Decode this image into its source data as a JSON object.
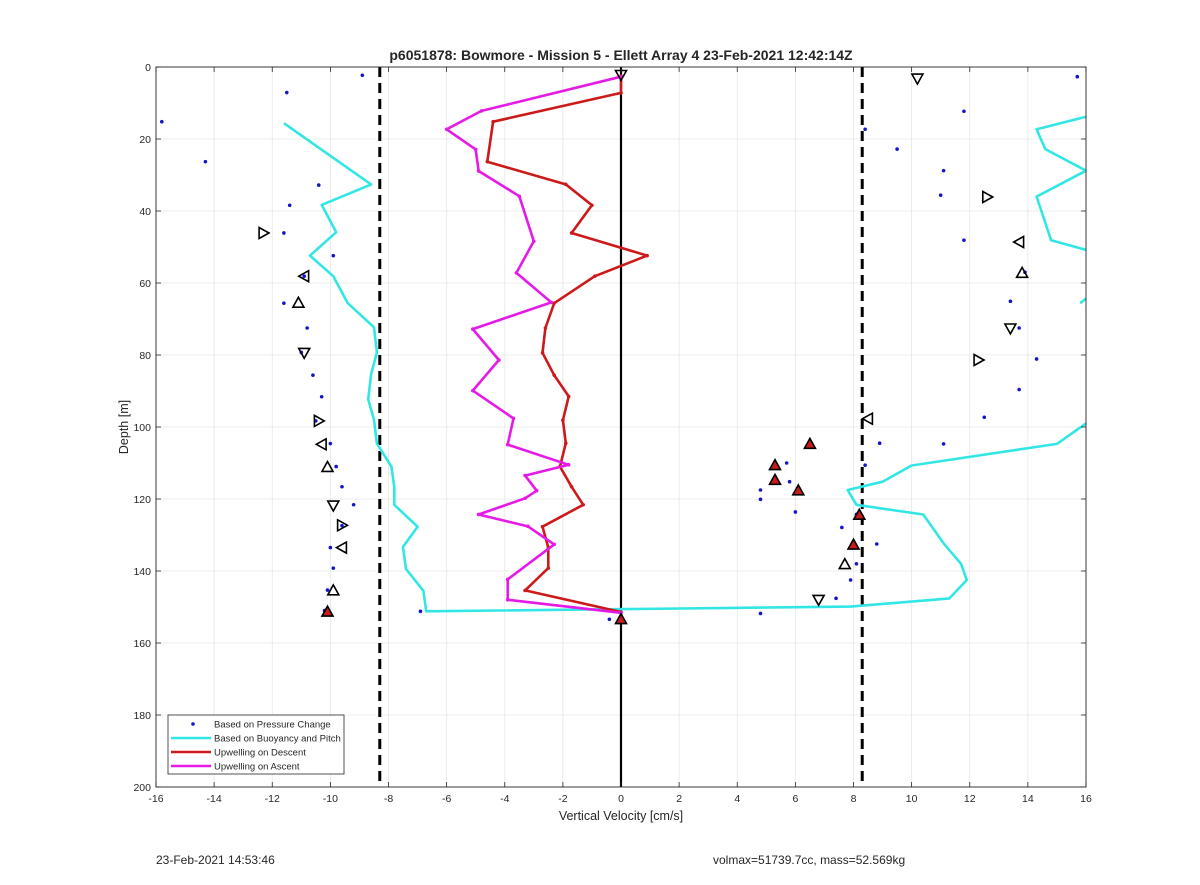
{
  "chart_data": {
    "type": "scatter",
    "title": "p6051878: Bowmore - Mission 5 - Ellett Array 4 23-Feb-2021 12:42:14Z",
    "xlabel": "Vertical Velocity [cm/s]",
    "ylabel": "Depth [m]",
    "xlim": [
      -16,
      16
    ],
    "ylim": [
      0,
      200
    ],
    "y_reversed": true,
    "grid": true,
    "legend_position": "bottom-left",
    "xticks": [
      "-16",
      "-14",
      "-12",
      "-10",
      "-8",
      "-6",
      "-4",
      "-2",
      "0",
      "2",
      "4",
      "6",
      "8",
      "10",
      "12",
      "14",
      "16"
    ],
    "yticks": [
      "0",
      "20",
      "40",
      "60",
      "80",
      "100",
      "120",
      "140",
      "160",
      "180",
      "200"
    ],
    "reference_lines": {
      "dashed_x": [
        -8.3,
        8.3
      ],
      "solid_x": [
        0
      ]
    },
    "colors": {
      "pressure": "#1414c8",
      "buoyancy": "#33e6e6",
      "descent": "#cc1a1a",
      "ascent": "#e61ae6",
      "axis": "#262626",
      "grid": "#e6e6e6"
    },
    "series": [
      {
        "name": "Based on Pressure Change",
        "style": "dots",
        "points": [
          [
            -8.9,
            2.3
          ],
          [
            -11.5,
            7.1
          ],
          [
            -15.8,
            15.2
          ],
          [
            -14.3,
            26.3
          ],
          [
            -10.4,
            32.8
          ],
          [
            -11.4,
            38.4
          ],
          [
            -11.6,
            46.1
          ],
          [
            -9.9,
            52.4
          ],
          [
            -10.9,
            58.1
          ],
          [
            -11.6,
            65.6
          ],
          [
            -10.8,
            72.5
          ],
          [
            -11.0,
            79.3
          ],
          [
            -10.6,
            85.6
          ],
          [
            -10.3,
            91.6
          ],
          [
            -10.5,
            98.3
          ],
          [
            -10.0,
            104.6
          ],
          [
            -9.8,
            111.0
          ],
          [
            -9.6,
            116.6
          ],
          [
            -9.2,
            121.6
          ],
          [
            -9.6,
            127.4
          ],
          [
            -10.0,
            133.5
          ],
          [
            -9.9,
            139.2
          ],
          [
            -10.1,
            145.3
          ],
          [
            -10.2,
            151.0
          ],
          [
            -6.9,
            151.2
          ],
          [
            -0.4,
            153.4
          ],
          [
            4.8,
            151.8
          ],
          [
            7.4,
            147.6
          ],
          [
            7.9,
            142.5
          ],
          [
            8.1,
            138.0
          ],
          [
            8.8,
            132.5
          ],
          [
            7.6,
            127.9
          ],
          [
            8.1,
            124.3
          ],
          [
            6.0,
            123.6
          ],
          [
            4.8,
            120.1
          ],
          [
            4.8,
            117.5
          ],
          [
            5.8,
            115.2
          ],
          [
            5.7,
            110.0
          ],
          [
            8.4,
            110.6
          ],
          [
            11.1,
            104.7
          ],
          [
            8.9,
            104.5
          ],
          [
            12.5,
            97.3
          ],
          [
            13.7,
            89.6
          ],
          [
            14.3,
            81.1
          ],
          [
            13.7,
            72.5
          ],
          [
            13.4,
            65.1
          ],
          [
            13.9,
            57.0
          ],
          [
            11.8,
            48.1
          ],
          [
            11.0,
            35.6
          ],
          [
            11.1,
            28.8
          ],
          [
            9.5,
            22.8
          ],
          [
            8.4,
            17.3
          ],
          [
            11.8,
            12.3
          ],
          [
            15.7,
            2.7
          ]
        ]
      },
      {
        "name": "Based on Buoyancy and Pitch",
        "style": "line",
        "segments": [
          [
            [
              -11.6,
              15.6
            ],
            [
              -8.6,
              32.6
            ],
            [
              -10.3,
              38.3
            ],
            [
              -9.8,
              45.9
            ],
            [
              -10.7,
              52.4
            ],
            [
              -9.9,
              58.1
            ],
            [
              -9.4,
              65.6
            ],
            [
              -8.5,
              72.3
            ],
            [
              -8.4,
              79.3
            ],
            [
              -8.6,
              85.4
            ],
            [
              -8.7,
              92.3
            ],
            [
              -8.5,
              98.0
            ],
            [
              -8.4,
              104.6
            ],
            [
              -7.9,
              111.0
            ],
            [
              -7.8,
              116.7
            ],
            [
              -7.8,
              121.6
            ],
            [
              -7.0,
              127.7
            ],
            [
              -7.5,
              133.3
            ],
            [
              -7.4,
              139.4
            ],
            [
              -6.8,
              145.5
            ],
            [
              -6.7,
              151.2
            ],
            [
              7.9,
              149.9
            ],
            [
              11.3,
              147.6
            ],
            [
              11.9,
              142.5
            ],
            [
              11.7,
              138.0
            ],
            [
              11.1,
              132.3
            ],
            [
              10.4,
              124.3
            ],
            [
              8.1,
              121.6
            ],
            [
              7.8,
              117.5
            ],
            [
              9.0,
              115.2
            ],
            [
              10.0,
              110.7
            ],
            [
              15.0,
              104.7
            ],
            [
              16.0,
              99.0
            ]
          ],
          [
            [
              16.0,
              13.8
            ],
            [
              14.3,
              17.3
            ],
            [
              14.6,
              22.8
            ],
            [
              16.0,
              28.8
            ]
          ],
          [
            [
              16.0,
              50.8
            ],
            [
              14.8,
              48.1
            ],
            [
              14.3,
              36.0
            ],
            [
              16.0,
              28.8
            ]
          ],
          [
            [
              15.8,
              65.6
            ],
            [
              16.0,
              64.3
            ]
          ]
        ]
      },
      {
        "name": "Upwelling on Descent",
        "style": "line",
        "segments": [
          [
            [
              0,
              2.5
            ],
            [
              0,
              7.2
            ],
            [
              -4.4,
              15.2
            ],
            [
              -4.6,
              26.3
            ],
            [
              -1.9,
              32.6
            ],
            [
              -1.0,
              38.4
            ],
            [
              -1.7,
              46.1
            ],
            [
              0.9,
              52.4
            ],
            [
              -0.9,
              58.1
            ],
            [
              -2.3,
              65.6
            ],
            [
              -2.6,
              72.5
            ],
            [
              -2.7,
              79.4
            ],
            [
              -2.3,
              85.6
            ],
            [
              -1.8,
              91.5
            ],
            [
              -2.0,
              98.1
            ],
            [
              -1.9,
              104.5
            ],
            [
              -2.1,
              111.0
            ],
            [
              -1.7,
              116.6
            ],
            [
              -1.3,
              121.6
            ],
            [
              -2.7,
              127.7
            ],
            [
              -2.5,
              133.5
            ],
            [
              -2.5,
              139.2
            ],
            [
              -3.3,
              145.4
            ],
            [
              0,
              151.4
            ],
            [
              0,
              153.2
            ]
          ]
        ],
        "markers": [
          [
            6.5,
            104.7
          ],
          [
            5.3,
            110.6
          ],
          [
            5.3,
            114.7
          ],
          [
            6.1,
            117.6
          ],
          [
            8.2,
            124.4
          ],
          [
            8.0,
            132.7
          ],
          [
            -10.1,
            151.3
          ],
          [
            0,
            153.4
          ]
        ]
      },
      {
        "name": "Upwelling on Ascent",
        "style": "line",
        "segments": [
          [
            [
              0,
              2.7
            ],
            [
              -4.8,
              12.2
            ],
            [
              -6.0,
              17.3
            ],
            [
              -5.0,
              22.9
            ],
            [
              -4.9,
              28.9
            ],
            [
              -3.5,
              35.9
            ],
            [
              -3.0,
              48.4
            ],
            [
              -3.6,
              57.2
            ],
            [
              -2.4,
              65.4
            ],
            [
              -5.1,
              72.8
            ],
            [
              -4.2,
              81.4
            ],
            [
              -5.1,
              89.9
            ],
            [
              -3.7,
              97.6
            ],
            [
              -3.9,
              104.9
            ],
            [
              -1.8,
              110.5
            ],
            [
              -3.3,
              113.5
            ],
            [
              -2.9,
              117.7
            ],
            [
              -3.3,
              119.8
            ],
            [
              -4.9,
              124.3
            ],
            [
              -3.2,
              127.6
            ],
            [
              -2.3,
              132.6
            ],
            [
              -3.9,
              142.3
            ],
            [
              -3.9,
              148.0
            ],
            [
              0,
              151.6
            ]
          ]
        ]
      }
    ],
    "ascent_open_markers": [
      [
        10.2,
        3.2
      ],
      [
        12.6,
        36.1
      ],
      [
        13.7,
        48.6
      ],
      [
        13.8,
        57.2
      ],
      [
        13.4,
        72.6
      ],
      [
        12.3,
        81.4
      ],
      [
        8.5,
        97.7
      ],
      [
        7.7,
        138.1
      ],
      [
        6.8,
        148.0
      ],
      [
        -12.3,
        46.1
      ],
      [
        -10.9,
        58.1
      ],
      [
        -11.1,
        65.5
      ],
      [
        -10.9,
        79.4
      ],
      [
        -10.4,
        98.3
      ],
      [
        -10.3,
        104.8
      ],
      [
        -10.1,
        111.1
      ],
      [
        -9.9,
        121.8
      ],
      [
        -9.6,
        127.3
      ],
      [
        -9.6,
        133.5
      ],
      [
        -9.9,
        145.4
      ],
      [
        0,
        2.2
      ]
    ]
  },
  "legend": {
    "items": [
      "Based on Pressure Change",
      "Based on Buoyancy and Pitch",
      "Upwelling on Descent",
      "Upwelling on Ascent"
    ]
  },
  "footer": {
    "timestamp": "23-Feb-2021 14:53:46",
    "stats": "volmax=51739.7cc, mass=52.569kg"
  }
}
